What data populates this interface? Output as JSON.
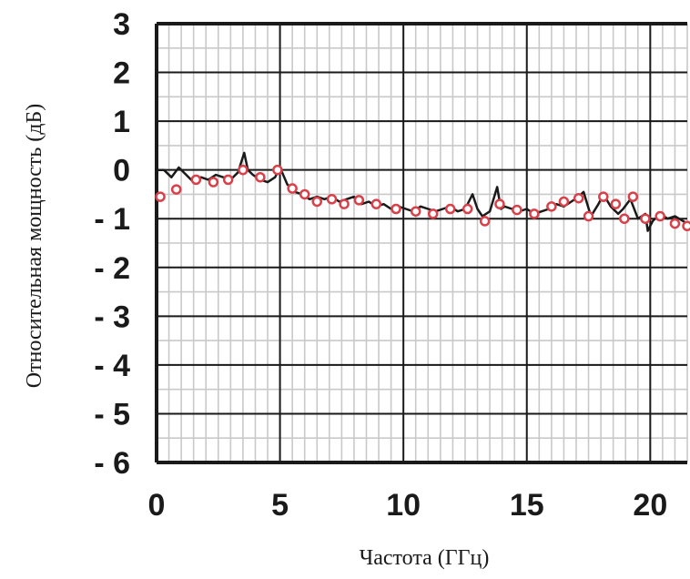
{
  "chart_data": {
    "type": "line",
    "title": "",
    "xlabel": "Частота (ГГц)",
    "ylabel": "Относительная мощность (дБ)",
    "xlim": [
      0,
      21.5
    ],
    "ylim": [
      -6,
      3
    ],
    "x_ticks": [
      0,
      5,
      10,
      15,
      20
    ],
    "y_ticks": [
      3,
      2,
      1,
      0,
      -1,
      -2,
      -3,
      -4,
      -5,
      -6
    ],
    "x_tick_labels": [
      "0",
      "5",
      "10",
      "15",
      "20"
    ],
    "y_tick_labels": [
      "3",
      "2",
      "1",
      "0",
      "- 1",
      "- 2",
      "- 3",
      "- 4",
      "- 5",
      "- 6"
    ],
    "grid": true,
    "minor_grid_step": 0.5,
    "series": [
      {
        "style": "line",
        "color": "#1a1a1a",
        "x": [
          0,
          0.3,
          0.6,
          0.9,
          1.2,
          1.5,
          1.8,
          2.1,
          2.4,
          2.7,
          3.0,
          3.3,
          3.55,
          3.7,
          3.9,
          4.2,
          4.5,
          4.8,
          5.0,
          5.3,
          5.6,
          5.9,
          6.2,
          6.5,
          6.8,
          7.1,
          7.4,
          7.7,
          8.0,
          8.3,
          8.6,
          8.9,
          9.2,
          9.5,
          9.8,
          10.1,
          10.4,
          10.7,
          11.0,
          11.3,
          11.6,
          11.9,
          12.2,
          12.5,
          12.8,
          13.0,
          13.2,
          13.5,
          13.8,
          13.95,
          14.1,
          14.4,
          14.7,
          15.0,
          15.3,
          15.6,
          15.9,
          16.2,
          16.5,
          16.8,
          17.1,
          17.3,
          17.6,
          17.9,
          18.1,
          18.4,
          18.7,
          18.9,
          19.2,
          19.5,
          19.8,
          19.9,
          20.1,
          20.4,
          20.7,
          21.0,
          21.5
        ],
        "y": [
          0.0,
          0.0,
          -0.15,
          0.05,
          -0.1,
          -0.25,
          -0.15,
          -0.2,
          -0.1,
          -0.15,
          -0.2,
          -0.05,
          0.35,
          0.0,
          -0.1,
          -0.2,
          -0.25,
          -0.15,
          0.05,
          -0.3,
          -0.45,
          -0.5,
          -0.6,
          -0.55,
          -0.6,
          -0.55,
          -0.65,
          -0.6,
          -0.55,
          -0.7,
          -0.65,
          -0.75,
          -0.7,
          -0.8,
          -0.75,
          -0.8,
          -0.85,
          -0.75,
          -0.8,
          -0.85,
          -0.8,
          -0.75,
          -0.85,
          -0.8,
          -0.5,
          -0.8,
          -0.95,
          -0.85,
          -0.35,
          -0.8,
          -0.75,
          -0.8,
          -0.85,
          -0.8,
          -0.9,
          -0.85,
          -0.8,
          -0.7,
          -0.75,
          -0.65,
          -0.55,
          -0.45,
          -0.95,
          -0.7,
          -0.5,
          -0.75,
          -0.9,
          -0.8,
          -0.6,
          -1.0,
          -0.9,
          -1.25,
          -1.05,
          -0.9,
          -1.0,
          -0.95,
          -1.1
        ]
      },
      {
        "style": "markers",
        "color": "#d94049",
        "x": [
          0.15,
          0.8,
          1.6,
          2.3,
          2.9,
          3.5,
          4.2,
          4.9,
          5.5,
          6.0,
          6.5,
          7.1,
          7.6,
          8.2,
          8.9,
          9.7,
          10.5,
          11.2,
          11.9,
          12.6,
          13.3,
          13.9,
          14.6,
          15.3,
          16.0,
          16.5,
          17.1,
          17.5,
          18.1,
          18.6,
          18.95,
          19.3,
          19.8,
          20.4,
          21.0,
          21.5
        ],
        "y": [
          -0.55,
          -0.4,
          -0.2,
          -0.25,
          -0.2,
          0.0,
          -0.15,
          0.0,
          -0.38,
          -0.5,
          -0.65,
          -0.6,
          -0.7,
          -0.62,
          -0.7,
          -0.8,
          -0.85,
          -0.9,
          -0.8,
          -0.8,
          -1.05,
          -0.7,
          -0.82,
          -0.9,
          -0.75,
          -0.65,
          -0.58,
          -0.95,
          -0.55,
          -0.7,
          -1.0,
          -0.55,
          -1.0,
          -0.95,
          -1.1,
          -1.15
        ]
      }
    ]
  }
}
